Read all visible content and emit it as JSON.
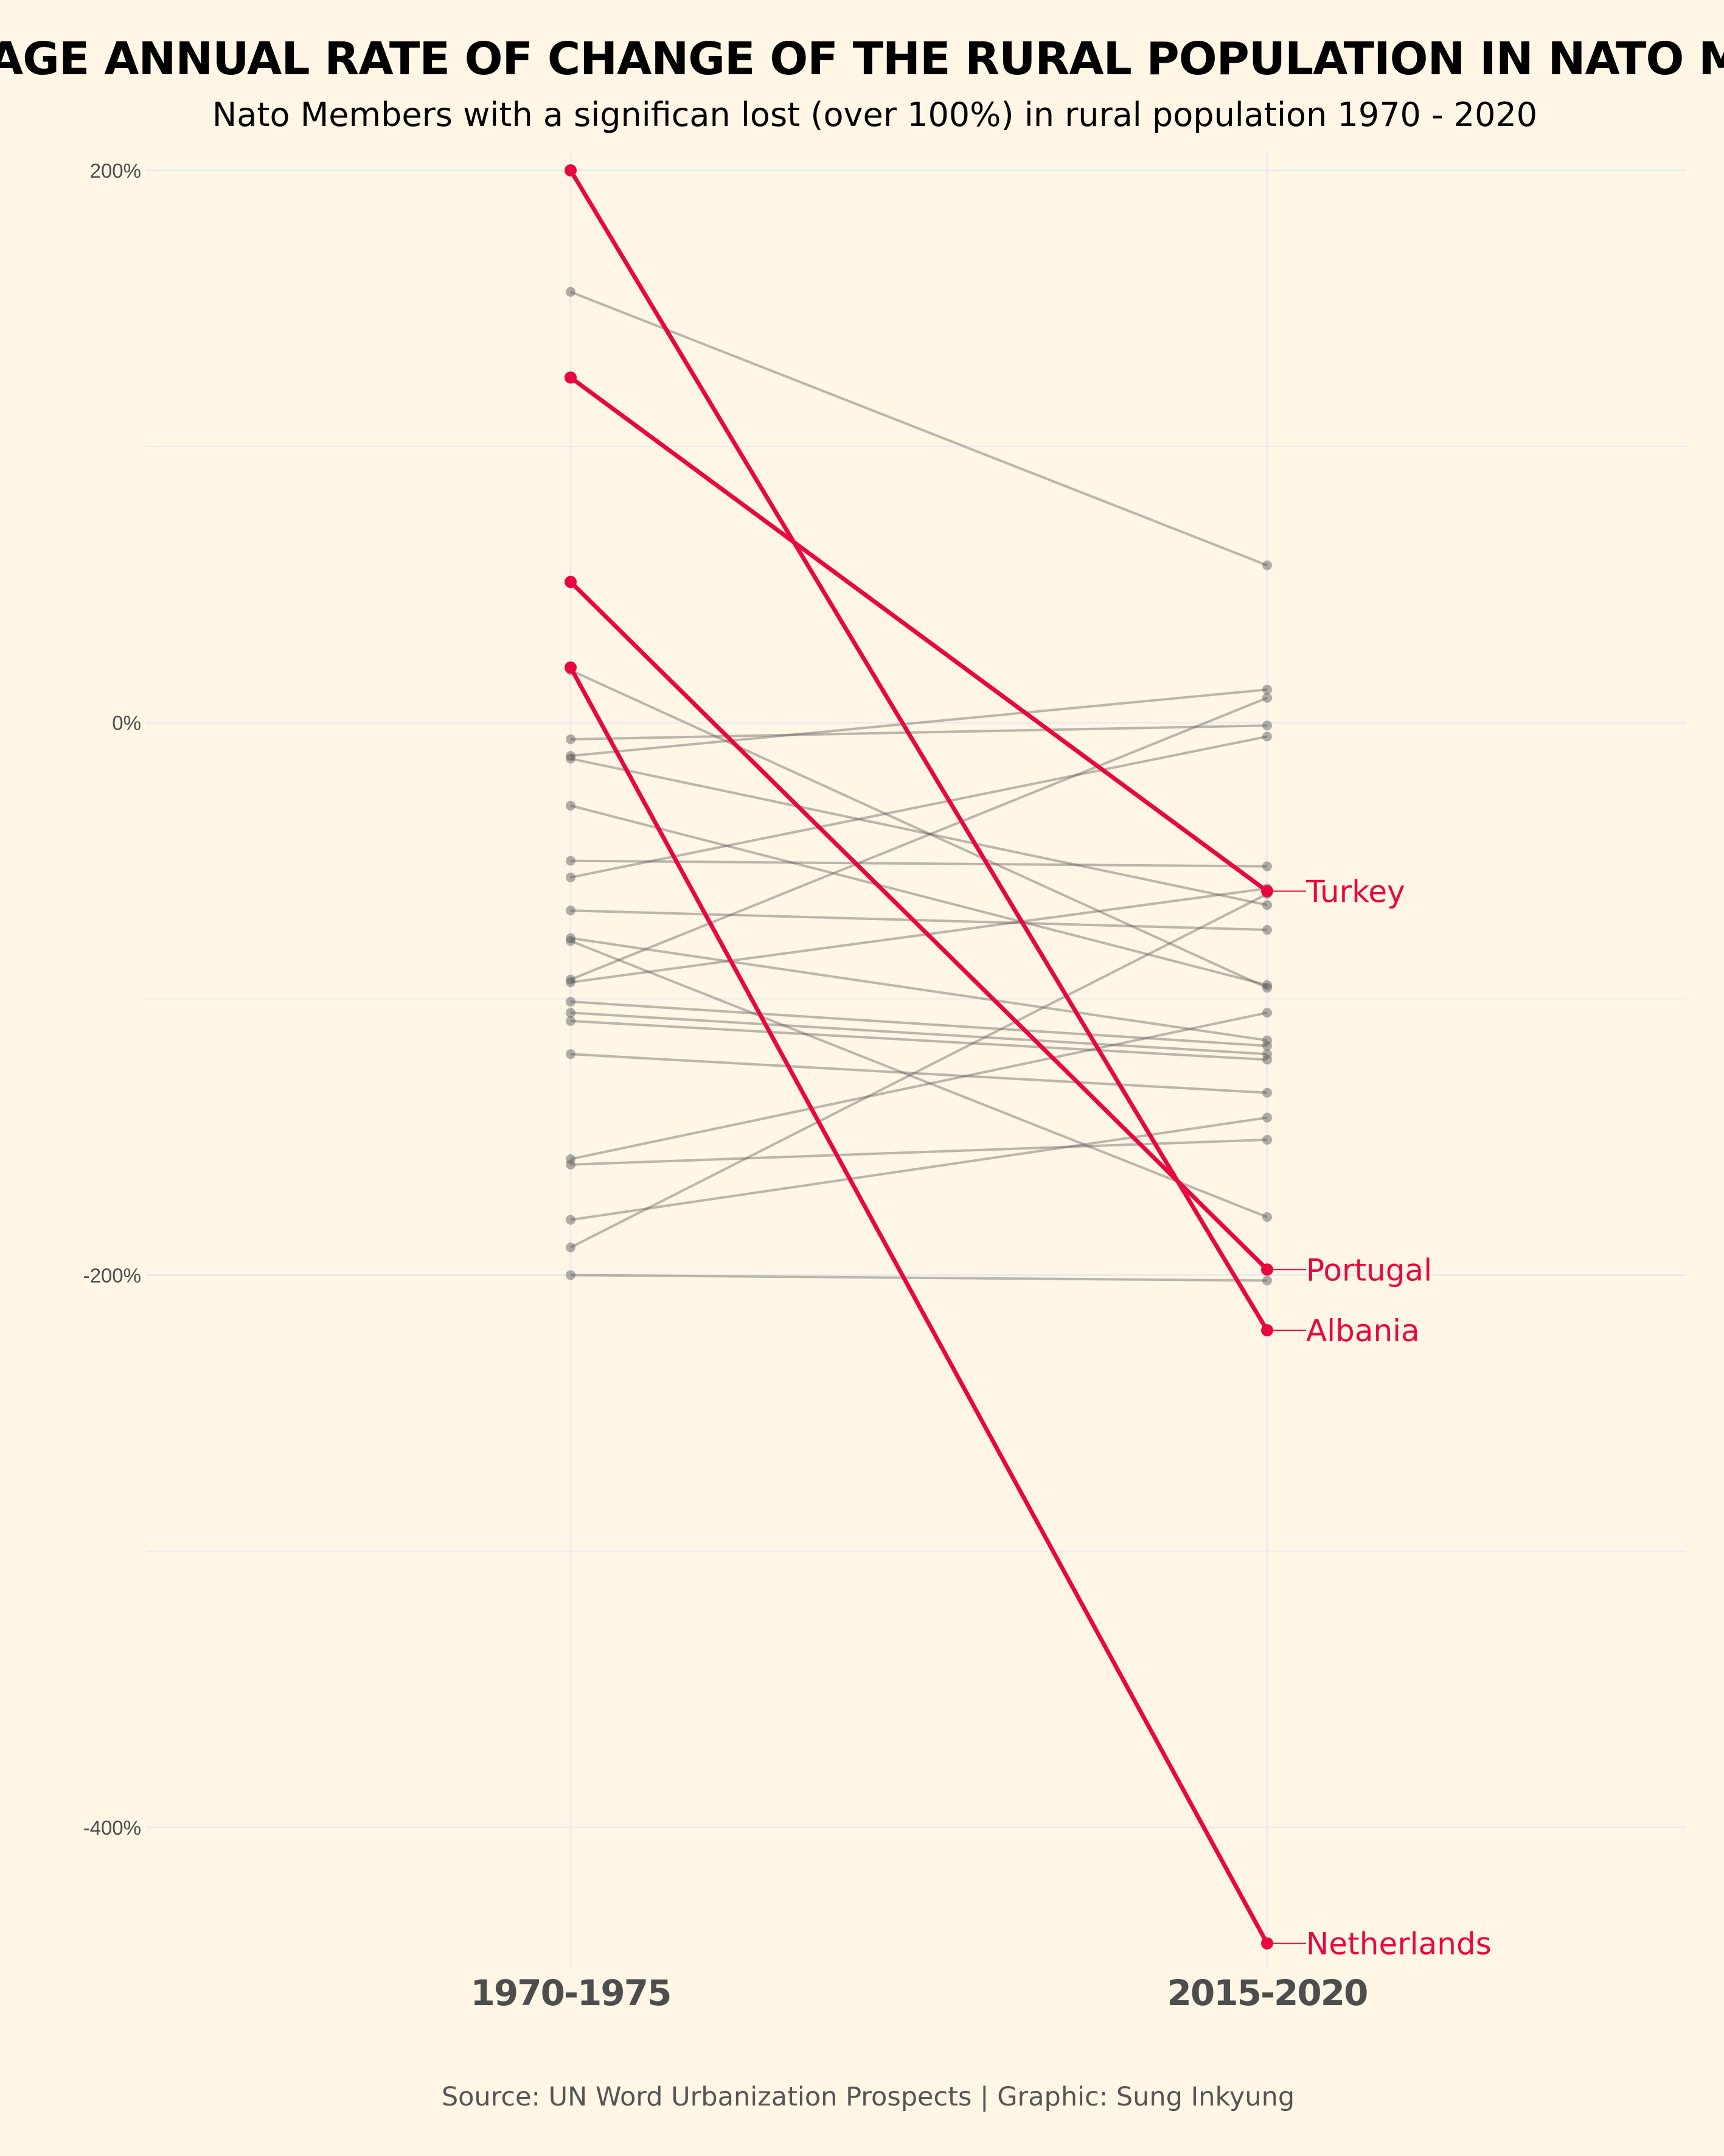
{
  "title": "AVERAGE ANNUAL RATE OF CHANGE OF THE RURAL POPULATION IN NATO MEMBERS",
  "subtitle": "Nato Members with a significan lost (over 100%) in rural population 1970 - 2020",
  "caption": "Source: UN Word Urbanization Prospects | Graphic: Sung Inkyung",
  "chart_data": {
    "type": "line",
    "chart_form": "slope",
    "categories": [
      "1970-1975",
      "2015-2020"
    ],
    "y_unit": "%",
    "ylim": [
      -460,
      205
    ],
    "y_ticks": [
      200,
      0,
      -200,
      -400
    ],
    "y_tick_labels": [
      "200%",
      "0%",
      "-200%",
      "-400%"
    ],
    "grid": true,
    "colors": {
      "background": "#FFF6E5",
      "highlight": "#E8073E",
      "other": "#555555"
    },
    "highlighted_series": [
      {
        "name": "Turkey",
        "values": [
          125,
          -61
        ]
      },
      {
        "name": "Portugal",
        "values": [
          51,
          -198
        ]
      },
      {
        "name": "Albania",
        "values": [
          200,
          -220
        ]
      },
      {
        "name": "Netherlands",
        "values": [
          20,
          -442
        ]
      }
    ],
    "other_series": [
      {
        "values": [
          156,
          57
        ]
      },
      {
        "values": [
          19,
          -96
        ]
      },
      {
        "values": [
          -6,
          -1
        ]
      },
      {
        "values": [
          -12,
          12
        ]
      },
      {
        "values": [
          -13,
          -66
        ]
      },
      {
        "values": [
          -30,
          -95
        ]
      },
      {
        "values": [
          -50,
          -52
        ]
      },
      {
        "values": [
          -56,
          -5
        ]
      },
      {
        "values": [
          -68,
          -75
        ]
      },
      {
        "values": [
          -78,
          -115
        ]
      },
      {
        "values": [
          -79,
          -179
        ]
      },
      {
        "values": [
          -93,
          9
        ]
      },
      {
        "values": [
          -94,
          -60
        ]
      },
      {
        "values": [
          -101,
          -117
        ]
      },
      {
        "values": [
          -105,
          -120
        ]
      },
      {
        "values": [
          -108,
          -122
        ]
      },
      {
        "values": [
          -120,
          -134
        ]
      },
      {
        "values": [
          -158,
          -105
        ]
      },
      {
        "values": [
          -160,
          -151
        ]
      },
      {
        "values": [
          -180,
          -143
        ]
      },
      {
        "values": [
          -190,
          -62
        ]
      },
      {
        "values": [
          -200,
          -202
        ]
      }
    ]
  }
}
